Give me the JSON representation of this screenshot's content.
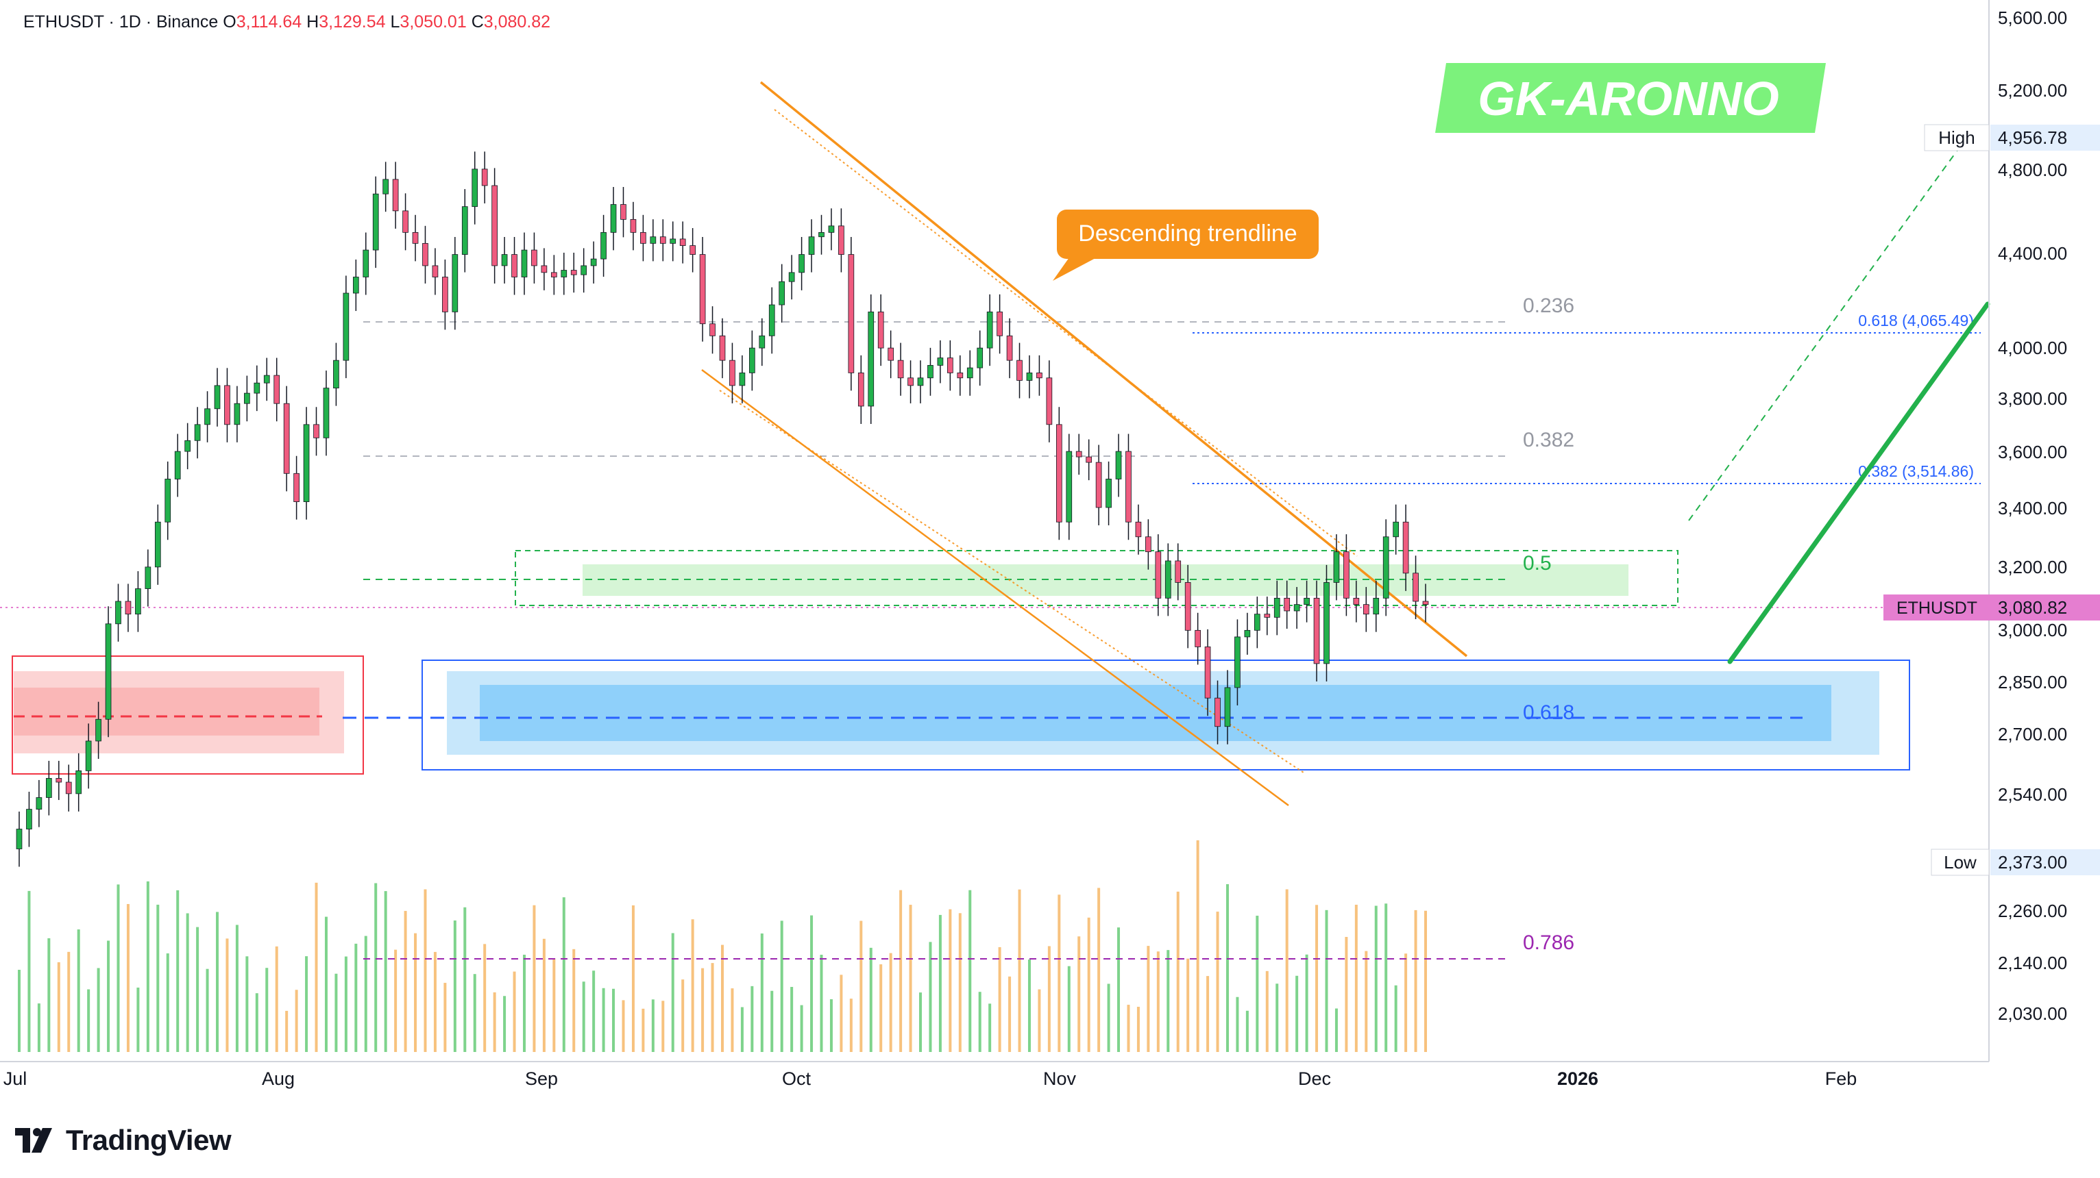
{
  "header": {
    "symbol_line": "ETHUSDT · 1D · Binance",
    "open_label": "O",
    "open_value": "3,114.64",
    "high_label": "H",
    "high_value": "3,129.54",
    "low_label": "L",
    "low_value": "3,050.01",
    "close_label": "C",
    "close_value": "3,080.82"
  },
  "watermark": "GK-ARONNO",
  "brand": "TradingView",
  "colors": {
    "up": "#26a69a",
    "up_bright": "#22b14c",
    "down": "#f23645",
    "down_pink": "#ef5b7f",
    "trendline": "#f7931a",
    "fib_blue": "#2962ff",
    "fib_purple": "#9c27b0",
    "watermark_bg": "#7cf27c"
  },
  "chart_data": {
    "type": "candlestick",
    "symbol": "ETHUSDT",
    "timeframe": "1D",
    "exchange": "Binance",
    "y_scale": "log",
    "ylim": [
      1960,
      5700
    ],
    "y_ticks": [
      "5,600.00",
      "5,200.00",
      "4,800.00",
      "4,400.00",
      "4,000.00",
      "3,800.00",
      "3,600.00",
      "3,400.00",
      "3,200.00",
      "3,000.00",
      "2,850.00",
      "2,700.00",
      "2,540.00",
      "2,373.00",
      "2,260.00",
      "2,140.00",
      "2,030.00"
    ],
    "x_ticks": [
      "Jul",
      "Aug",
      "Sep",
      "Oct",
      "Nov",
      "Dec",
      "2026",
      "Feb"
    ],
    "last_price_label": "ETHUSDT",
    "last_price": "3,080.82",
    "high_label": "High",
    "high_value": "4,956.78",
    "low_label": "Low",
    "low_value": "2,373.00",
    "fib_levels": [
      {
        "label": "0.236",
        "price": 4130
      },
      {
        "label": "0.382",
        "price": 3580
      },
      {
        "label": "0.5",
        "price": 3160
      },
      {
        "label": "0.618",
        "price": 2760
      },
      {
        "label": "0.786",
        "price": 2150
      }
    ],
    "target_levels": [
      {
        "label": "0.618 (4,065.49)",
        "price": 4065.49
      },
      {
        "label": "0.382 (3,514.86)",
        "price": 3514.86
      }
    ],
    "annotations": [
      {
        "label": "Descending trendline"
      }
    ],
    "candles_ohlc_note": "approximate daily closes",
    "closes": [
      2450,
      2500,
      2530,
      2580,
      2570,
      2540,
      2600,
      2680,
      2740,
      3020,
      3090,
      3050,
      3130,
      3200,
      3350,
      3500,
      3600,
      3640,
      3700,
      3760,
      3850,
      3700,
      3780,
      3820,
      3860,
      3890,
      3780,
      3520,
      3420,
      3700,
      3650,
      3840,
      3950,
      4230,
      4300,
      4420,
      4680,
      4750,
      4600,
      4500,
      4450,
      4350,
      4300,
      4150,
      4400,
      4620,
      4800,
      4720,
      4350,
      4400,
      4300,
      4420,
      4350,
      4320,
      4300,
      4330,
      4310,
      4350,
      4380,
      4500,
      4630,
      4560,
      4500,
      4450,
      4480,
      4450,
      4470,
      4440,
      4400,
      4100,
      4050,
      3950,
      3850,
      3900,
      4000,
      4050,
      4180,
      4280,
      4320,
      4400,
      4480,
      4500,
      4530,
      4400,
      3900,
      3770,
      4150,
      4000,
      3950,
      3880,
      3850,
      3880,
      3930,
      3960,
      3900,
      3880,
      3920,
      4000,
      4150,
      4050,
      3950,
      3870,
      3900,
      3880,
      3700,
      3350,
      3600,
      3580,
      3560,
      3400,
      3500,
      3600,
      3350,
      3300,
      3250,
      3100,
      3220,
      3150,
      3000,
      2950,
      2800,
      2720,
      2830,
      2980,
      3000,
      3050,
      3040,
      3100,
      3060,
      3080,
      3100,
      2900,
      3150,
      3250,
      3100,
      3080,
      3050,
      3100,
      3300,
      3350,
      3180,
      3090,
      3080
    ]
  }
}
